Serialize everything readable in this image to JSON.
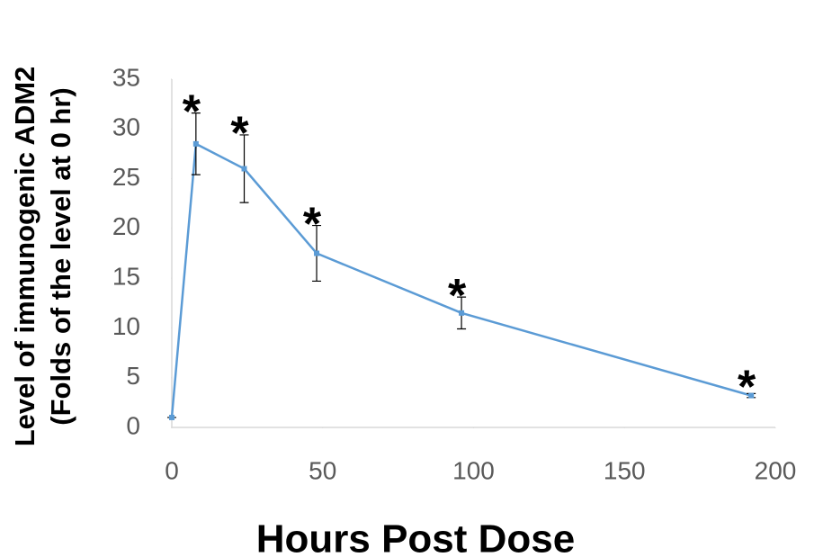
{
  "chart_data": {
    "type": "line",
    "xlabel": "Hours Post Dose",
    "ylabel": [
      "Level of immunogenic ADM2",
      "(Folds of the level at 0 hr)"
    ],
    "x": [
      0,
      8,
      24,
      48,
      96,
      192
    ],
    "series": [
      {
        "name": "ADM2",
        "color": "#5b9bd5",
        "values": [
          1,
          28.5,
          26,
          17.5,
          11.5,
          3.2
        ],
        "errors": [
          0,
          3.1,
          3.4,
          2.8,
          1.6,
          0.2
        ],
        "markers": [
          null,
          "*",
          "*",
          "*",
          "*",
          "*"
        ]
      }
    ],
    "xlim": [
      0,
      200
    ],
    "xticks": [
      0,
      50,
      100,
      150,
      200
    ],
    "ylim": [
      0,
      35
    ],
    "yticks": [
      0,
      5,
      10,
      15,
      20,
      25,
      30,
      35
    ],
    "grid": false
  }
}
